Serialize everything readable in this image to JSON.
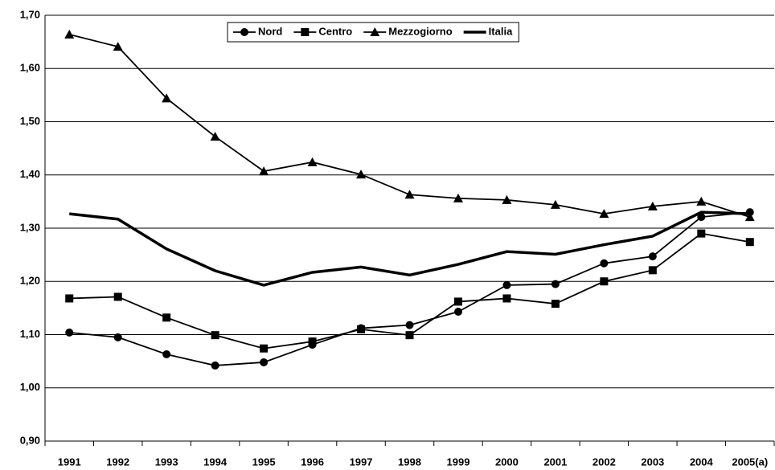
{
  "chart_data": {
    "type": "line",
    "categories": [
      "1991",
      "1992",
      "1993",
      "1994",
      "1995",
      "1996",
      "1997",
      "1998",
      "1999",
      "2000",
      "2001",
      "2002",
      "2003",
      "2004",
      "2005(a)"
    ],
    "series": [
      {
        "name": "Nord",
        "color": "#000000",
        "marker": "circle",
        "values": [
          1.104,
          1.095,
          1.063,
          1.042,
          1.048,
          1.081,
          1.112,
          1.118,
          1.143,
          1.193,
          1.195,
          1.234,
          1.247,
          1.321,
          1.33
        ]
      },
      {
        "name": "Centro",
        "color": "#000000",
        "marker": "square",
        "values": [
          1.168,
          1.171,
          1.132,
          1.099,
          1.074,
          1.087,
          1.11,
          1.099,
          1.162,
          1.168,
          1.158,
          1.2,
          1.221,
          1.29,
          1.274
        ]
      },
      {
        "name": "Mezzogiorno",
        "color": "#000000",
        "marker": "triangle",
        "values": [
          1.664,
          1.641,
          1.544,
          1.472,
          1.407,
          1.424,
          1.401,
          1.363,
          1.356,
          1.353,
          1.344,
          1.327,
          1.341,
          1.35,
          1.321
        ]
      },
      {
        "name": "Italia",
        "color": "#000000",
        "marker": null,
        "values": [
          1.327,
          1.317,
          1.261,
          1.22,
          1.193,
          1.217,
          1.227,
          1.212,
          1.232,
          1.256,
          1.251,
          1.269,
          1.285,
          1.33,
          1.327
        ]
      }
    ],
    "ylim": [
      0.9,
      1.7
    ],
    "yticks": [
      {
        "value": 0.9,
        "label": "0,90"
      },
      {
        "value": 1.0,
        "label": "1,00"
      },
      {
        "value": 1.1,
        "label": "1,10"
      },
      {
        "value": 1.2,
        "label": "1,20"
      },
      {
        "value": 1.3,
        "label": "1,30"
      },
      {
        "value": 1.4,
        "label": "1,40"
      },
      {
        "value": 1.5,
        "label": "1,50"
      },
      {
        "value": 1.6,
        "label": "1,60"
      },
      {
        "value": 1.7,
        "label": "1,70"
      }
    ],
    "grid": true,
    "legend": "top"
  }
}
